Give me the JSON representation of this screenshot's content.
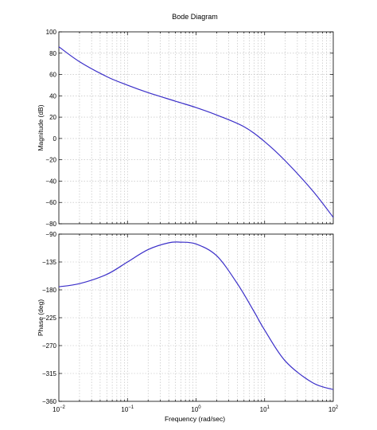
{
  "title": "Bode Diagram",
  "xlabel": "Frequency  (rad/sec)",
  "chart_data": [
    {
      "type": "line",
      "name": "magnitude",
      "ylabel": "Magnitude (dB)",
      "xscale": "log",
      "xlim": [
        0.01,
        100
      ],
      "ylim": [
        -80,
        100
      ],
      "yticks": [
        100,
        80,
        60,
        40,
        20,
        0,
        -20,
        -40,
        -60,
        -80
      ],
      "ytick_labels": [
        "100",
        "80",
        "60",
        "40",
        "20",
        "0",
        "−20",
        "−40",
        "−60",
        "−80"
      ],
      "grid": true,
      "color": "#3b2fc9",
      "x": [
        0.01,
        0.02,
        0.05,
        0.1,
        0.2,
        0.5,
        1,
        2,
        5,
        10,
        20,
        50,
        100
      ],
      "y": [
        86,
        72,
        58,
        50,
        43,
        35,
        29,
        22,
        11,
        -3,
        -21,
        -49,
        -74
      ]
    },
    {
      "type": "line",
      "name": "phase",
      "ylabel": "Phase (deg)",
      "xscale": "log",
      "xlim": [
        0.01,
        100
      ],
      "ylim": [
        -360,
        -90
      ],
      "yticks": [
        -90,
        -135,
        -180,
        -225,
        -270,
        -315,
        -360
      ],
      "ytick_labels": [
        "−90",
        "−135",
        "−180",
        "−225",
        "−270",
        "−315",
        "−360"
      ],
      "grid": true,
      "color": "#3b2fc9",
      "x": [
        0.01,
        0.02,
        0.05,
        0.1,
        0.2,
        0.4,
        0.6,
        1,
        2,
        4,
        7,
        10,
        20,
        50,
        100
      ],
      "y": [
        -175,
        -170,
        -155,
        -135,
        -115,
        -104,
        -103,
        -106,
        -125,
        -170,
        -215,
        -245,
        -295,
        -330,
        -341
      ]
    }
  ],
  "xticks": [
    {
      "base": "10",
      "exp": "−2"
    },
    {
      "base": "10",
      "exp": "−1"
    },
    {
      "base": "10",
      "exp": "0"
    },
    {
      "base": "10",
      "exp": "1"
    },
    {
      "base": "10",
      "exp": "2"
    }
  ]
}
